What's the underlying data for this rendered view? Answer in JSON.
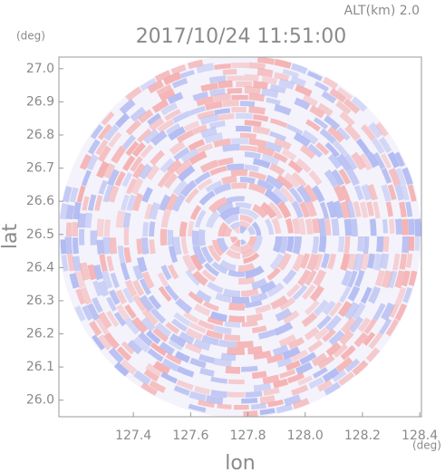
{
  "chart_data": {
    "type": "ppi",
    "title": "2017/10/24 11:51:00",
    "subtitle": "ALT(km) 2.0",
    "xlabel": "lon",
    "ylabel": "lat",
    "xunit": "(deg)",
    "yunit": "(deg)",
    "xlim": [
      127.14,
      128.406
    ],
    "ylim": [
      25.95,
      27.035
    ],
    "xticks": [
      127.4,
      127.6,
      127.8,
      {
        "value": 128.0,
        "label": "128.0"
      },
      128.2,
      128.4
    ],
    "yticks": [
      {
        "value": 26.0,
        "label": "26.0"
      },
      26.1,
      26.2,
      26.3,
      26.4,
      26.5,
      26.6,
      26.7,
      26.8,
      26.9,
      {
        "value": 27.0,
        "label": "27.0"
      }
    ]
  }
}
